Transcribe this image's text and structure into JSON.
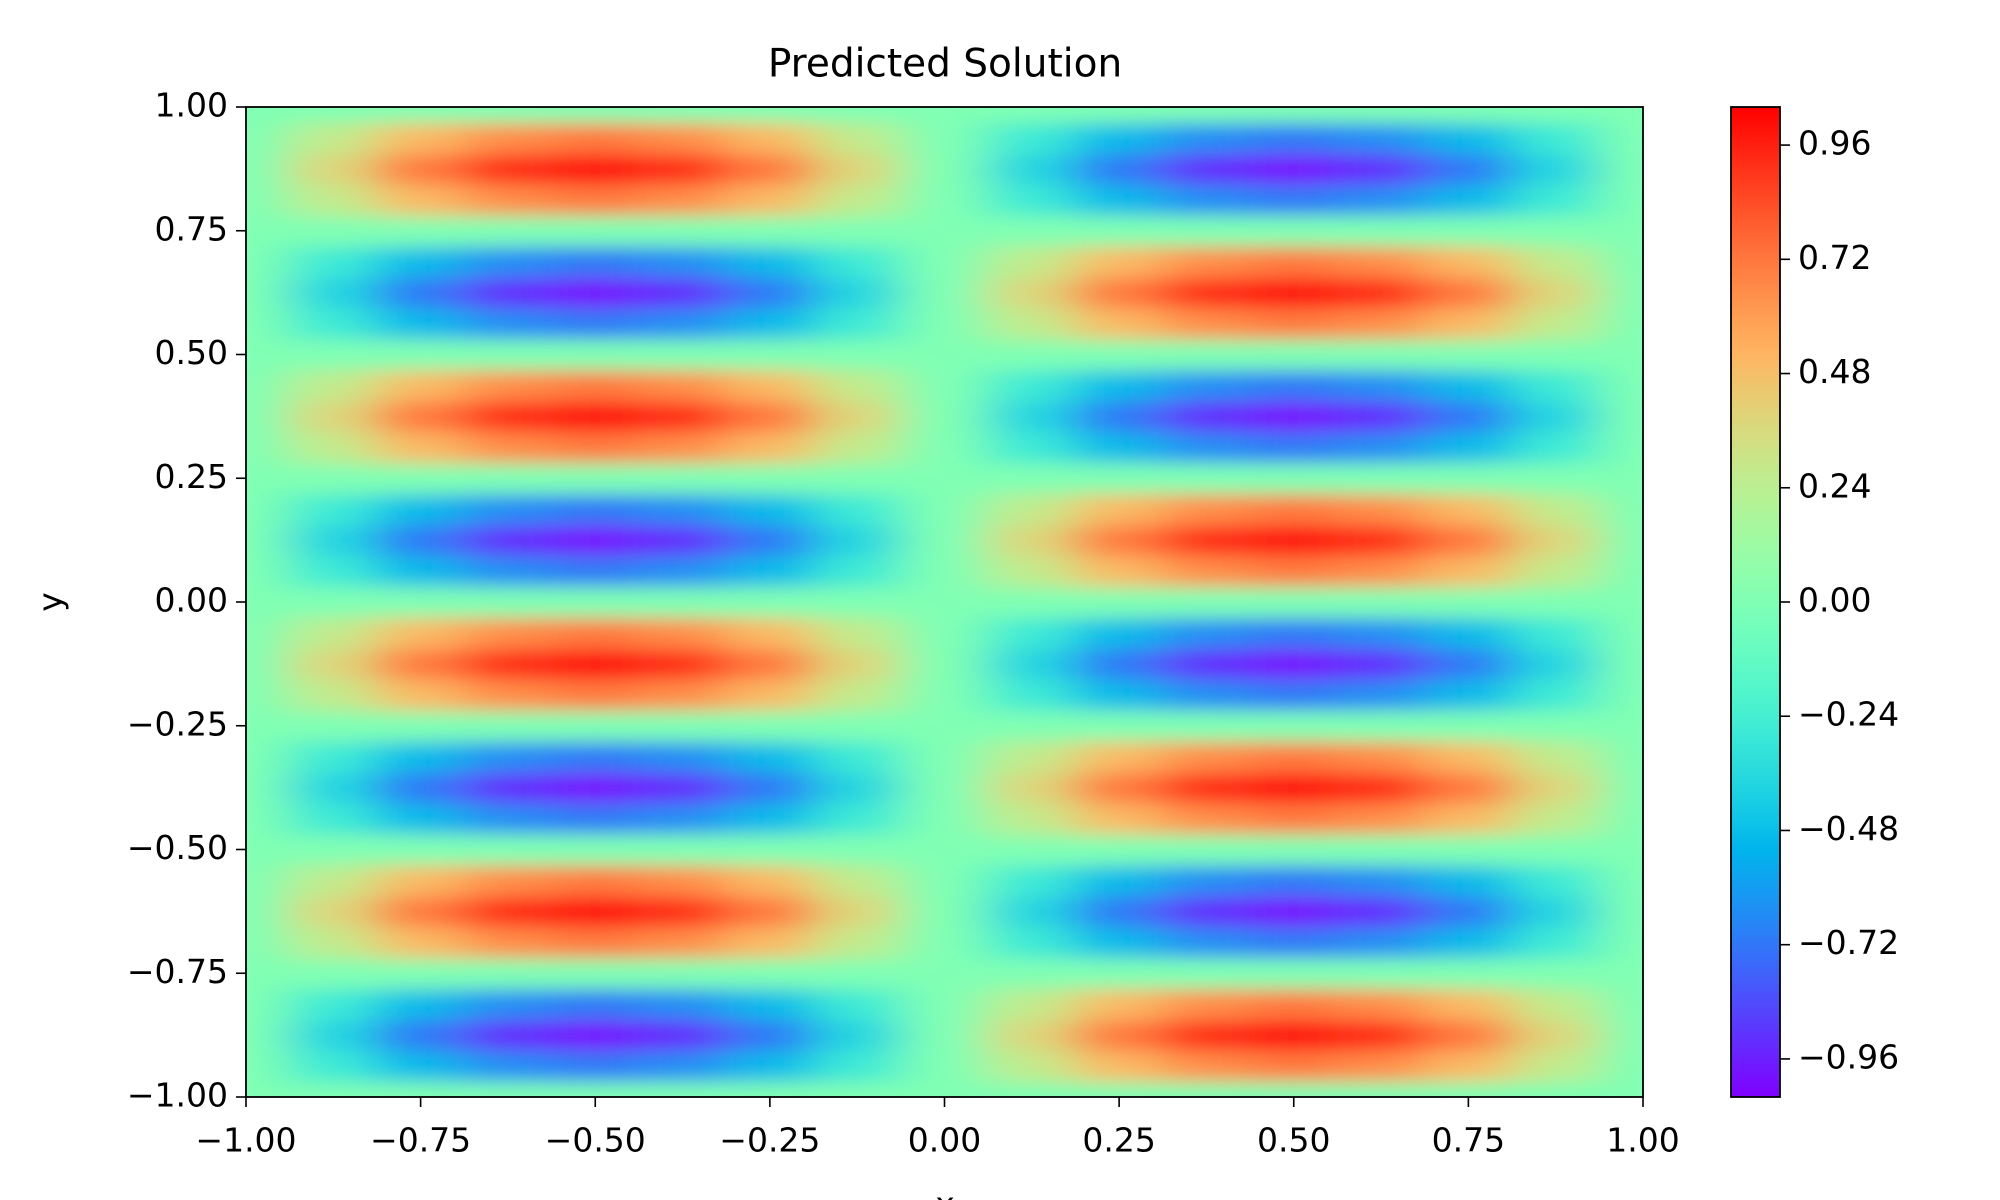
{
  "chart_data": {
    "type": "contourf",
    "title": "Predicted Solution",
    "xlabel": "x",
    "ylabel": "y",
    "colormap": "rainbow",
    "x": [
      -1,
      -0.875,
      -0.75,
      -0.625,
      -0.5,
      -0.375,
      -0.25,
      -0.125,
      0,
      0.125,
      0.25,
      0.375,
      0.5,
      0.625,
      0.75,
      0.875,
      1
    ],
    "y": [
      -1,
      -0.9375,
      -0.875,
      -0.8125,
      -0.75,
      -0.6875,
      -0.625,
      -0.5625,
      -0.5,
      -0.4375,
      -0.375,
      -0.3125,
      -0.25,
      -0.1875,
      -0.125,
      -0.0625,
      0,
      0.0625,
      0.125,
      0.1875,
      0.25,
      0.3125,
      0.375,
      0.4375,
      0.5,
      0.5625,
      0.625,
      0.6875,
      0.75,
      0.8125,
      0.875,
      0.9375,
      1
    ],
    "z": [
      [
        0,
        0,
        0,
        0,
        0,
        0,
        0,
        0,
        0,
        0,
        0,
        0,
        0,
        0,
        0,
        0,
        0
      ],
      [
        0,
        -0.27,
        -0.5,
        -0.65,
        -0.71,
        -0.65,
        -0.5,
        -0.27,
        0,
        0.27,
        0.5,
        0.65,
        0.71,
        0.65,
        0.5,
        0.27,
        0
      ],
      [
        0,
        -0.38,
        -0.71,
        -0.92,
        -1,
        -0.92,
        -0.71,
        -0.38,
        0,
        0.38,
        0.71,
        0.92,
        1,
        0.92,
        0.71,
        0.38,
        0
      ],
      [
        0,
        -0.27,
        -0.5,
        -0.65,
        -0.71,
        -0.65,
        -0.5,
        -0.27,
        0,
        0.27,
        0.5,
        0.65,
        0.71,
        0.65,
        0.5,
        0.27,
        0
      ],
      [
        0,
        0,
        0,
        0,
        0,
        0,
        0,
        0,
        0,
        0,
        0,
        0,
        0,
        0,
        0,
        0,
        0
      ],
      [
        0,
        0.27,
        0.5,
        0.65,
        0.71,
        0.65,
        0.5,
        0.27,
        0,
        -0.27,
        -0.5,
        -0.65,
        -0.71,
        -0.65,
        -0.5,
        -0.27,
        0
      ],
      [
        0,
        0.38,
        0.71,
        0.92,
        1,
        0.92,
        0.71,
        0.38,
        0,
        -0.38,
        -0.71,
        -0.92,
        -1,
        -0.92,
        -0.71,
        -0.38,
        0
      ],
      [
        0,
        0.27,
        0.5,
        0.65,
        0.71,
        0.65,
        0.5,
        0.27,
        0,
        -0.27,
        -0.5,
        -0.65,
        -0.71,
        -0.65,
        -0.5,
        -0.27,
        0
      ],
      [
        0,
        0,
        0,
        0,
        0,
        0,
        0,
        0,
        0,
        0,
        0,
        0,
        0,
        0,
        0,
        0,
        0
      ],
      [
        0,
        -0.27,
        -0.5,
        -0.65,
        -0.71,
        -0.65,
        -0.5,
        -0.27,
        0,
        0.27,
        0.5,
        0.65,
        0.71,
        0.65,
        0.5,
        0.27,
        0
      ],
      [
        0,
        -0.38,
        -0.71,
        -0.92,
        -1,
        -0.92,
        -0.71,
        -0.38,
        0,
        0.38,
        0.71,
        0.92,
        1,
        0.92,
        0.71,
        0.38,
        0
      ],
      [
        0,
        -0.27,
        -0.5,
        -0.65,
        -0.71,
        -0.65,
        -0.5,
        -0.27,
        0,
        0.27,
        0.5,
        0.65,
        0.71,
        0.65,
        0.5,
        0.27,
        0
      ],
      [
        0,
        0,
        0,
        0,
        0,
        0,
        0,
        0,
        0,
        0,
        0,
        0,
        0,
        0,
        0,
        0,
        0
      ],
      [
        0,
        0.27,
        0.5,
        0.65,
        0.71,
        0.65,
        0.5,
        0.27,
        0,
        -0.27,
        -0.5,
        -0.65,
        -0.71,
        -0.65,
        -0.5,
        -0.27,
        0
      ],
      [
        0,
        0.38,
        0.71,
        0.92,
        1,
        0.92,
        0.71,
        0.38,
        0,
        -0.38,
        -0.71,
        -0.92,
        -1,
        -0.92,
        -0.71,
        -0.38,
        0
      ],
      [
        0,
        0.27,
        0.5,
        0.65,
        0.71,
        0.65,
        0.5,
        0.27,
        0,
        -0.27,
        -0.5,
        -0.65,
        -0.71,
        -0.65,
        -0.5,
        -0.27,
        0
      ],
      [
        0,
        0,
        0,
        0,
        0,
        0,
        0,
        0,
        0,
        0,
        0,
        0,
        0,
        0,
        0,
        0,
        0
      ],
      [
        0,
        -0.27,
        -0.5,
        -0.65,
        -0.71,
        -0.65,
        -0.5,
        -0.27,
        0,
        0.27,
        0.5,
        0.65,
        0.71,
        0.65,
        0.5,
        0.27,
        0
      ],
      [
        0,
        -0.38,
        -0.71,
        -0.92,
        -1,
        -0.92,
        -0.71,
        -0.38,
        0,
        0.38,
        0.71,
        0.92,
        1,
        0.92,
        0.71,
        0.38,
        0
      ],
      [
        0,
        -0.27,
        -0.5,
        -0.65,
        -0.71,
        -0.65,
        -0.5,
        -0.27,
        0,
        0.27,
        0.5,
        0.65,
        0.71,
        0.65,
        0.5,
        0.27,
        0
      ],
      [
        0,
        0,
        0,
        0,
        0,
        0,
        0,
        0,
        0,
        0,
        0,
        0,
        0,
        0,
        0,
        0,
        0
      ],
      [
        0,
        0.27,
        0.5,
        0.65,
        0.71,
        0.65,
        0.5,
        0.27,
        0,
        -0.27,
        -0.5,
        -0.65,
        -0.71,
        -0.65,
        -0.5,
        -0.27,
        0
      ],
      [
        0,
        0.38,
        0.71,
        0.92,
        1,
        0.92,
        0.71,
        0.38,
        0,
        -0.38,
        -0.71,
        -0.92,
        -1,
        -0.92,
        -0.71,
        -0.38,
        0
      ],
      [
        0,
        0.27,
        0.5,
        0.65,
        0.71,
        0.65,
        0.5,
        0.27,
        0,
        -0.27,
        -0.5,
        -0.65,
        -0.71,
        -0.65,
        -0.5,
        -0.27,
        0
      ],
      [
        0,
        0,
        0,
        0,
        0,
        0,
        0,
        0,
        0,
        0,
        0,
        0,
        0,
        0,
        0,
        0,
        0
      ],
      [
        0,
        -0.27,
        -0.5,
        -0.65,
        -0.71,
        -0.65,
        -0.5,
        -0.27,
        0,
        0.27,
        0.5,
        0.65,
        0.71,
        0.65,
        0.5,
        0.27,
        0
      ],
      [
        0,
        -0.38,
        -0.71,
        -0.92,
        -1,
        -0.92,
        -0.71,
        -0.38,
        0,
        0.38,
        0.71,
        0.92,
        1,
        0.92,
        0.71,
        0.38,
        0
      ],
      [
        0,
        -0.27,
        -0.5,
        -0.65,
        -0.71,
        -0.65,
        -0.5,
        -0.27,
        0,
        0.27,
        0.5,
        0.65,
        0.71,
        0.65,
        0.5,
        0.27,
        0
      ],
      [
        0,
        0,
        0,
        0,
        0,
        0,
        0,
        0,
        0,
        0,
        0,
        0,
        0,
        0,
        0,
        0,
        0
      ],
      [
        0,
        0.27,
        0.5,
        0.65,
        0.71,
        0.65,
        0.5,
        0.27,
        0,
        -0.27,
        -0.5,
        -0.65,
        -0.71,
        -0.65,
        -0.5,
        -0.27,
        0
      ],
      [
        0,
        0.38,
        0.71,
        0.92,
        1,
        0.92,
        0.71,
        0.38,
        0,
        -0.38,
        -0.71,
        -0.92,
        -1,
        -0.92,
        -0.71,
        -0.38,
        0
      ],
      [
        0,
        0.27,
        0.5,
        0.65,
        0.71,
        0.65,
        0.5,
        0.27,
        0,
        -0.27,
        -0.5,
        -0.65,
        -0.71,
        -0.65,
        -0.5,
        -0.27,
        0
      ],
      [
        0,
        0,
        0,
        0,
        0,
        0,
        0,
        0,
        0,
        0,
        0,
        0,
        0,
        0,
        0,
        0,
        0
      ]
    ],
    "xlim": [
      -1,
      1
    ],
    "ylim": [
      -1,
      1
    ],
    "xticks": [
      {
        "value": -1,
        "label": "−1.00"
      },
      {
        "value": -0.75,
        "label": "−0.75"
      },
      {
        "value": -0.5,
        "label": "−0.50"
      },
      {
        "value": -0.25,
        "label": "−0.25"
      },
      {
        "value": 0,
        "label": "0.00"
      },
      0.25,
      {
        "value": 0.5,
        "label": "0.50"
      },
      0.75,
      {
        "value": 1,
        "label": "1.00"
      }
    ],
    "yticks": [
      {
        "value": -1,
        "label": "−1.00"
      },
      {
        "value": -0.75,
        "label": "−0.75"
      },
      {
        "value": -0.5,
        "label": "−0.50"
      },
      {
        "value": -0.25,
        "label": "−0.25"
      },
      {
        "value": 0,
        "label": "0.00"
      },
      0.25,
      {
        "value": 0.5,
        "label": "0.50"
      },
      0.75,
      {
        "value": 1,
        "label": "1.00"
      }
    ],
    "clim": [
      -1.04,
      1.04
    ],
    "cticks": [
      {
        "value": -0.96,
        "label": "−0.96"
      },
      {
        "value": -0.72,
        "label": "−0.72"
      },
      {
        "value": -0.48,
        "label": "−0.48"
      },
      {
        "value": -0.24,
        "label": "−0.24"
      },
      {
        "value": 0,
        "label": "0.00"
      },
      0.24,
      0.48,
      0.72,
      0.96
    ]
  }
}
